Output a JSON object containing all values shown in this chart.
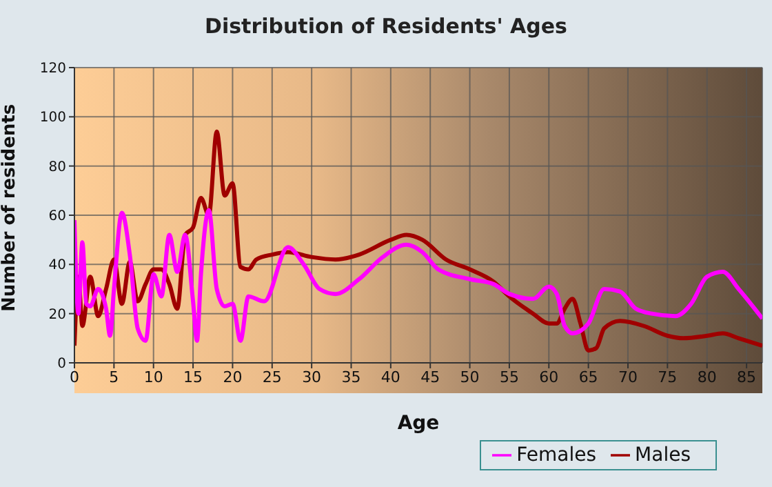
{
  "chart_data": {
    "type": "line",
    "title": "Distribution of Residents' Ages",
    "xlabel": "Age",
    "ylabel": "Number of residents",
    "xlim": [
      0,
      87
    ],
    "xticks": [
      0,
      5,
      10,
      15,
      20,
      25,
      30,
      35,
      40,
      45,
      50,
      55,
      60,
      65,
      70,
      75,
      80,
      85
    ],
    "ylim": [
      0,
      120
    ],
    "yticks": [
      0,
      20,
      40,
      60,
      80,
      100,
      120
    ],
    "grid": true,
    "legend": "bottom right",
    "marker": "none",
    "line_style": "solid",
    "series": [
      {
        "name": "Males",
        "color": "#a00000",
        "x": [
          0,
          0.5,
          1,
          2,
          3,
          4,
          5,
          6,
          7,
          8,
          9,
          10,
          11,
          12,
          13,
          14,
          15,
          16,
          17,
          18,
          19,
          20,
          21,
          22,
          23,
          25,
          27,
          30,
          33,
          36,
          40,
          42,
          44,
          47,
          50,
          53,
          55,
          58,
          60,
          61,
          62,
          63,
          64,
          65,
          66,
          67,
          69,
          72,
          75,
          77,
          80,
          82,
          84,
          87
        ],
        "values": [
          7,
          35,
          15,
          35,
          19,
          30,
          42,
          24,
          41,
          25,
          32,
          38,
          38,
          32,
          22,
          52,
          55,
          67,
          60,
          94,
          68,
          73,
          39,
          38,
          42,
          44,
          45,
          43,
          42,
          44,
          50,
          52,
          50,
          42,
          38,
          33,
          27,
          20,
          16,
          16,
          22,
          26,
          16,
          5,
          6,
          14,
          17,
          15,
          11,
          10,
          11,
          12,
          10,
          7
        ]
      },
      {
        "name": "Females",
        "color": "#ff00ff",
        "x": [
          0,
          0.5,
          1,
          1.5,
          2,
          3,
          4,
          4.5,
          5,
          6,
          7,
          8,
          9,
          10,
          11,
          12,
          13,
          14,
          15,
          15.5,
          16,
          17,
          18,
          19,
          20,
          21,
          22,
          24,
          27,
          29,
          31,
          33,
          36,
          39,
          42,
          44,
          46,
          50,
          53,
          55,
          58,
          60,
          61,
          62,
          63,
          64,
          65,
          67,
          69,
          71,
          73,
          76,
          78,
          80,
          82,
          84,
          87
        ],
        "values": [
          58,
          20,
          49,
          24,
          23,
          30,
          22,
          11,
          30,
          61,
          44,
          14,
          9,
          36,
          27,
          52,
          37,
          52,
          25,
          9,
          36,
          62,
          30,
          23,
          24,
          9,
          27,
          25,
          47,
          40,
          30,
          28,
          34,
          43,
          48,
          45,
          38,
          34,
          32,
          28,
          26,
          31,
          28,
          15,
          12,
          13,
          16,
          30,
          29,
          22,
          20,
          19,
          24,
          35,
          37,
          30,
          18
        ]
      }
    ]
  }
}
